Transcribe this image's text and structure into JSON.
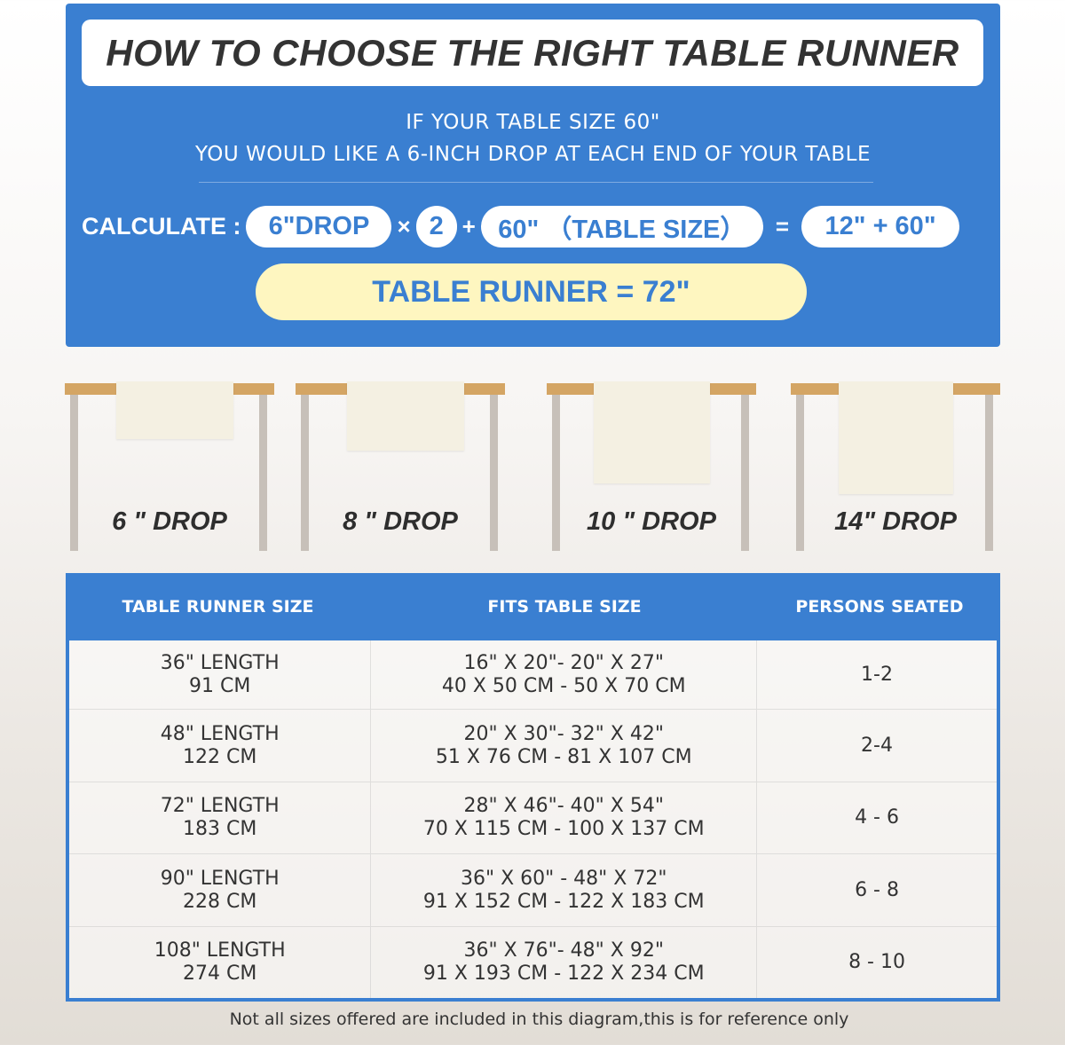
{
  "header": {
    "title": "HOW TO CHOOSE THE RIGHT TABLE RUNNER",
    "line1": "IF YOUR TABLE SIZE 60\"",
    "line2": "YOU WOULD LIKE A 6-INCH DROP AT EACH END OF YOUR TABLE"
  },
  "calc": {
    "label": "CALCULATE :",
    "drop": "6\"DROP",
    "times": "×",
    "multiplier": "2",
    "plus": "+",
    "table_size": "60\" （TABLE SIZE）",
    "equals": "=",
    "sum": "12\" + 60\"",
    "result": "TABLE RUNNER = 72\""
  },
  "drops": [
    {
      "label": "6 \" DROP"
    },
    {
      "label": "8 \" DROP"
    },
    {
      "label": "10 \" DROP"
    },
    {
      "label": "14\" DROP"
    }
  ],
  "table": {
    "headers": [
      "TABLE RUNNER SIZE",
      "FITS TABLE SIZE",
      "PERSONS SEATED"
    ],
    "rows": [
      {
        "size": "36\" LENGTH",
        "size_cm": "91 CM",
        "fits": "16\" X 20\"- 20\" X 27\"",
        "fits_cm": "40 X 50 CM - 50 X 70 CM",
        "persons": "1-2"
      },
      {
        "size": "48\" LENGTH",
        "size_cm": "122 CM",
        "fits": "20\" X 30\"- 32\" X 42\"",
        "fits_cm": "51 X 76 CM - 81 X 107 CM",
        "persons": "2-4"
      },
      {
        "size": "72\" LENGTH",
        "size_cm": "183 CM",
        "fits": "28\" X 46\"- 40\" X 54\"",
        "fits_cm": "70 X 115 CM - 100 X 137 CM",
        "persons": "4 - 6"
      },
      {
        "size": "90\" LENGTH",
        "size_cm": "228 CM",
        "fits": "36\" X 60\" - 48\" X 72\"",
        "fits_cm": "91 X 152 CM - 122 X 183 CM",
        "persons": "6 - 8"
      },
      {
        "size": "108\" LENGTH",
        "size_cm": "274 CM",
        "fits": "36\" X 76\"- 48\" X 92\"",
        "fits_cm": "91 X 193 CM - 122 X 234 CM",
        "persons": "8 - 10"
      }
    ]
  },
  "footer": "Not all sizes offered are included in this diagram,this is for reference only",
  "colors": {
    "brand_blue": "#3a7fd1",
    "result_yellow": "#fef6c0",
    "table_wood": "#d4a564"
  }
}
